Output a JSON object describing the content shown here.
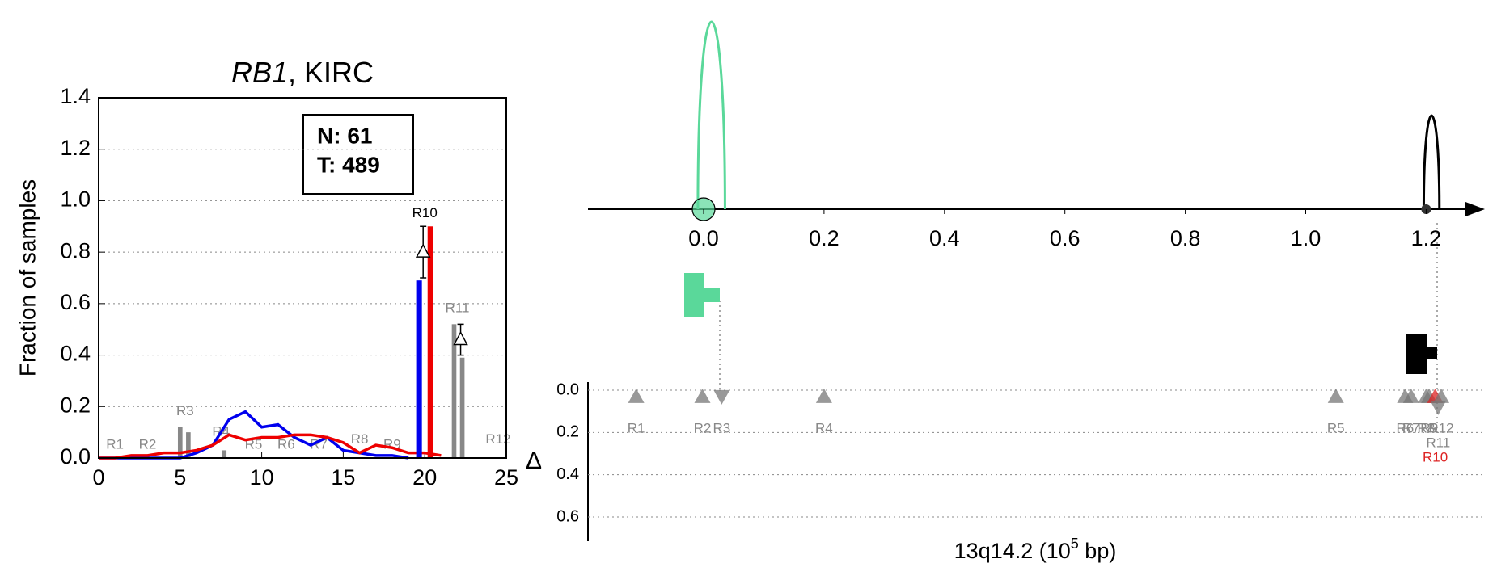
{
  "chart_data": [
    {
      "type": "line",
      "title_gene": "RB1",
      "title_rest": ", KIRC",
      "ylabel": "Fraction of samples",
      "info": [
        "N: 61",
        "T: 489"
      ],
      "xlim": [
        0,
        25
      ],
      "xticks": [
        0,
        5,
        10,
        15,
        20,
        25
      ],
      "ylim": [
        0,
        1.4
      ],
      "yticks": [
        {
          "value": 0,
          "label": "0.0"
        },
        0.2,
        0.4,
        0.6,
        0.8,
        {
          "value": 1,
          "label": "1.0"
        },
        1.2,
        1.4
      ],
      "grid": true,
      "x": [
        0,
        1,
        2,
        3,
        4,
        5,
        6,
        7,
        8,
        9,
        10,
        11,
        12,
        13,
        14,
        15,
        16,
        17,
        18,
        19,
        20,
        21
      ],
      "series": [
        {
          "color": "#0000ee",
          "values": [
            0,
            0,
            0,
            0,
            0,
            0,
            0.02,
            0.05,
            0.15,
            0.18,
            0.12,
            0.13,
            0.08,
            0.05,
            0.08,
            0.03,
            0.02,
            0.01,
            0.01,
            0,
            null,
            null
          ]
        },
        {
          "color": "#ee0000",
          "values": [
            0,
            0,
            0.01,
            0.01,
            0.02,
            0.02,
            0.03,
            0.05,
            0.09,
            0.07,
            0.08,
            0.08,
            0.09,
            0.09,
            0.08,
            0.06,
            0.02,
            0.05,
            0.04,
            0.02,
            0.02,
            0.01
          ]
        }
      ],
      "region_bars": {
        "color": "#888888",
        "x": [
          5,
          5.5,
          7.7,
          21.8,
          22.3
        ],
        "values": [
          0.12,
          0.1,
          0.03,
          0.52,
          0.39
        ]
      },
      "highlight_bars": {
        "x": [
          19.65,
          20.35
        ],
        "values": [
          0.69,
          0.9
        ],
        "colors": [
          "#0000ee",
          "#ee0000"
        ]
      },
      "delta": {
        "x": [
          19.9,
          22.2
        ],
        "values": [
          0.8,
          0.46
        ],
        "errors": [
          0.1,
          0.06
        ]
      },
      "regions": {
        "labels": [
          "R1",
          "R2",
          "R3",
          "R4",
          "R5",
          "R6",
          "R7",
          "R8",
          "R9",
          "R10",
          "R11",
          "R12"
        ],
        "x": [
          1,
          3,
          5.3,
          7.5,
          9.5,
          11.5,
          13.5,
          16,
          18,
          20,
          22,
          24.5
        ],
        "y": [
          0.05,
          0.05,
          0.18,
          0.1,
          0.05,
          0.05,
          0.05,
          0.07,
          0.05,
          0.95,
          0.58,
          0.07
        ],
        "colors": [
          "#888888",
          "#888888",
          "#888888",
          "#888888",
          "#888888",
          "#888888",
          "#888888",
          "#888888",
          "#888888",
          "#000000",
          "#888888",
          "#888888"
        ]
      }
    },
    {
      "type": "scatter",
      "xlabel": "13q14.2 (10",
      "xlabel_exp": "5",
      "xlabel_end": " bp)",
      "ylabel": "Δ",
      "xlim": [
        -0.19,
        1.33
      ],
      "xticks": [
        {
          "value": 0,
          "label": "0.0"
        },
        0.2,
        0.4,
        0.6,
        0.8,
        {
          "value": 1,
          "label": "1.0"
        },
        1.2
      ],
      "ylim": [
        0,
        0.7
      ],
      "yticks": [
        {
          "value": 0,
          "label": "0.0"
        },
        0.2,
        0.4,
        0.6
      ],
      "peaks": {
        "x": [
          0.013,
          1.209
        ],
        "heights": [
          1.0,
          0.5
        ],
        "widths": [
          0.045,
          0.026
        ],
        "colors": [
          "#5ad89a",
          "#000000"
        ]
      },
      "points": {
        "labels": [
          "R1",
          "R2",
          "R3",
          "R4",
          "R5",
          "R6",
          "R7",
          "R8",
          "R9",
          "R10",
          "R11",
          "R12"
        ],
        "x": [
          -0.112,
          -0.002,
          0.03,
          0.2,
          1.05,
          1.165,
          1.175,
          1.2,
          1.205,
          1.215,
          1.22,
          1.225
        ],
        "values": [
          0.03,
          0.03,
          0.03,
          0.03,
          0.03,
          0.03,
          0.03,
          0.03,
          0.03,
          0.03,
          0.08,
          0.03
        ],
        "directions": [
          "up",
          "up",
          "down",
          "up",
          "up",
          "up",
          "up",
          "up",
          "up",
          "up",
          "down",
          "up"
        ],
        "colors": [
          "#777777",
          "#777777",
          "#777777",
          "#777777",
          "#777777",
          "#777777",
          "#777777",
          "#777777",
          "#777777",
          "#dd2222",
          "#777777",
          "#777777"
        ]
      }
    }
  ]
}
